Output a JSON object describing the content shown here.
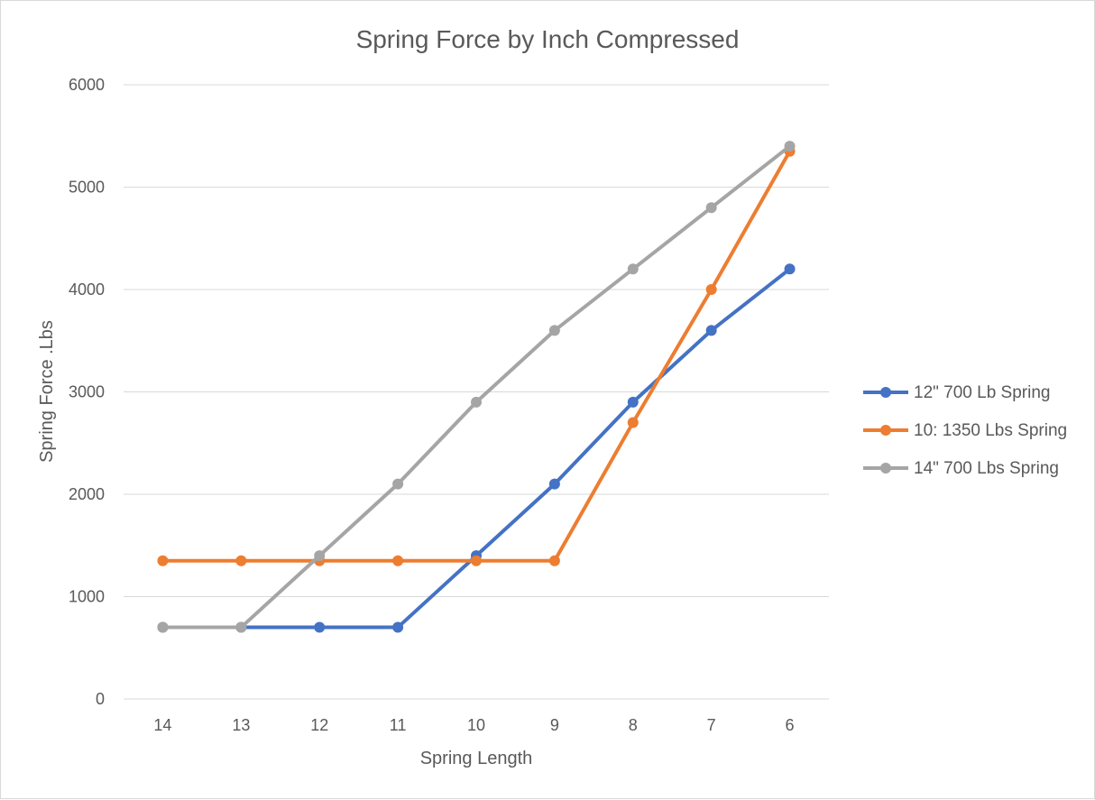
{
  "chart_data": {
    "type": "line",
    "title": "Spring Force by Inch Compressed",
    "xlabel": "Spring Length",
    "ylabel": "Spring Force .Lbs",
    "categories": [
      "14",
      "13",
      "12",
      "11",
      "10",
      "9",
      "8",
      "7",
      "6"
    ],
    "ylim": [
      0,
      6000
    ],
    "yticks": [
      "0",
      "1000",
      "2000",
      "3000",
      "4000",
      "5000",
      "6000"
    ],
    "grid": true,
    "legend_position": "right",
    "series": [
      {
        "name": "12\" 700 Lb Spring",
        "color": "#4472c4",
        "values": [
          700,
          700,
          700,
          700,
          1400,
          2100,
          2900,
          3600,
          4200
        ]
      },
      {
        "name": "10: 1350 Lbs Spring",
        "color": "#ed7d31",
        "values": [
          1350,
          1350,
          1350,
          1350,
          1350,
          1350,
          2700,
          4000,
          5350
        ]
      },
      {
        "name": "14\" 700 Lbs Spring",
        "color": "#a5a5a5",
        "values": [
          700,
          700,
          1400,
          2100,
          2900,
          3600,
          4200,
          4800,
          5400
        ]
      }
    ]
  }
}
